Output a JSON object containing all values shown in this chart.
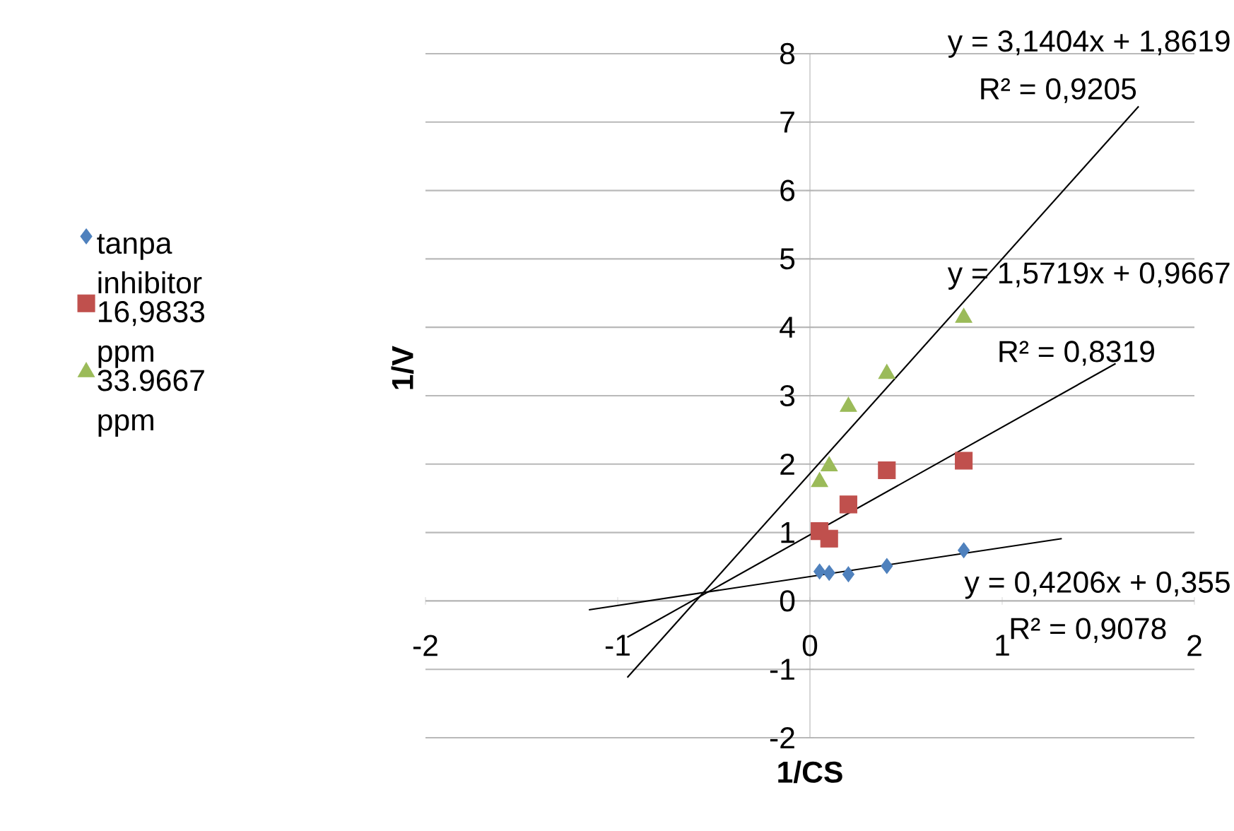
{
  "chart_data": {
    "type": "scatter",
    "xlabel": "1/CS",
    "ylabel": "1/V",
    "xlim": [
      -2,
      2
    ],
    "ylim": [
      -2,
      8
    ],
    "xticks": [
      -2,
      -1,
      0,
      1,
      2
    ],
    "yticks": [
      -2,
      -1,
      0,
      1,
      2,
      3,
      4,
      5,
      6,
      7,
      8
    ],
    "grid": "y",
    "legend": "left",
    "annotations": [
      "y = 3,1404x + 1,8619",
      "R² = 0,9205",
      "y = 1,5719x + 0,9667",
      "R² = 0,8319",
      "y = 0,4206x + 0,355",
      "R² = 0,9078"
    ],
    "series": [
      {
        "name": "tanpa inhibitor",
        "marker": "diamond",
        "color": "#4f81bd",
        "x": [
          0.05,
          0.1,
          0.2,
          0.4,
          0.8
        ],
        "values": [
          0.43,
          0.41,
          0.39,
          0.51,
          0.74
        ]
      },
      {
        "name": "16,9833 ppm",
        "marker": "square",
        "color": "#c0504d",
        "x": [
          0.05,
          0.1,
          0.2,
          0.4,
          0.8
        ],
        "values": [
          1.02,
          0.91,
          1.41,
          1.91,
          2.05
        ]
      },
      {
        "name": "33.9667 ppm",
        "marker": "triangle",
        "color": "#9bbb59",
        "x": [
          0.05,
          0.1,
          0.2,
          0.4,
          0.8
        ],
        "values": [
          1.74,
          1.97,
          2.84,
          3.32,
          4.14
        ]
      },
      {
        "type": "line",
        "marker": "none",
        "color": "#000000",
        "x": [
          -1.15,
          1.31
        ],
        "values": [
          -0.13,
          0.91
        ]
      },
      {
        "type": "line",
        "marker": "none",
        "color": "#000000",
        "x": [
          -0.95,
          1.59
        ],
        "values": [
          -0.53,
          3.47
        ]
      },
      {
        "type": "line",
        "marker": "none",
        "color": "#000000",
        "x": [
          -0.95,
          1.71
        ],
        "values": [
          -1.12,
          7.23
        ]
      }
    ]
  }
}
